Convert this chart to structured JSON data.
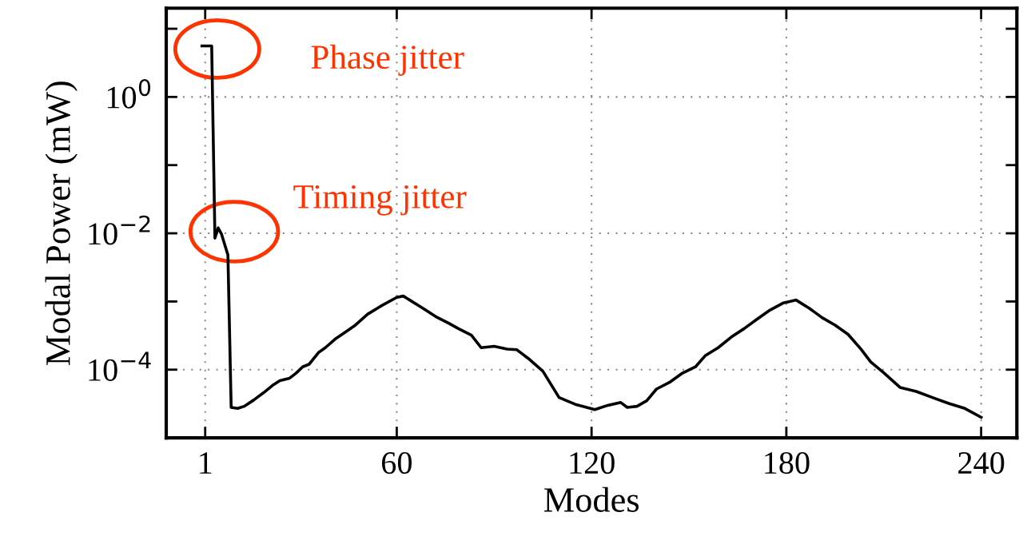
{
  "chart_data": {
    "type": "line",
    "xlabel": "Modes",
    "ylabel": "Modal Power (mW)",
    "log": "y",
    "grid": true,
    "marker": "none",
    "line_style": "solid",
    "xlim": [
      -11,
      251
    ],
    "xticks": [
      1,
      60,
      120,
      180,
      240
    ],
    "ylim": [
      1e-05,
      20
    ],
    "yticks": [
      {
        "value": 10,
        "label": null
      },
      {
        "value": 1,
        "label": "10$^{0}$"
      },
      {
        "value": 0.1,
        "label": null
      },
      {
        "value": 0.01,
        "label": "10$^{−2}$"
      },
      {
        "value": 0.001,
        "label": null
      },
      {
        "value": 0.0001,
        "label": "10$^{−4}$"
      }
    ],
    "series": [
      {
        "color": "#000000",
        "x": [
          0,
          1,
          2,
          3,
          4,
          5,
          6,
          8,
          9,
          11,
          13,
          16,
          19,
          22,
          24,
          27,
          29,
          31,
          33,
          36,
          38,
          41,
          44,
          47,
          51,
          55,
          60,
          62,
          64,
          68,
          72,
          76,
          79,
          83,
          86,
          90,
          94,
          97,
          101,
          105,
          110,
          115,
          121,
          125,
          129,
          131,
          134,
          137,
          140,
          144,
          148,
          152,
          155,
          159,
          163,
          167,
          171,
          175,
          179,
          181,
          183,
          187,
          191,
          195,
          199,
          203,
          206,
          210,
          215,
          220,
          225,
          230,
          235,
          240
        ],
        "values": [
          5.6,
          5.6,
          5.6,
          5.6,
          0.0085,
          0.012,
          0.0098,
          0.0048,
          2.8e-05,
          2.7e-05,
          2.9e-05,
          3.6e-05,
          4.6e-05,
          6e-05,
          6.9e-05,
          7.5e-05,
          8.9e-05,
          0.00011,
          0.00012,
          0.00018,
          0.00021,
          0.00028,
          0.00035,
          0.00044,
          0.00065,
          0.00085,
          0.00115,
          0.0012,
          0.00105,
          0.0008,
          0.0006,
          0.00048,
          0.0004,
          0.00032,
          0.00021,
          0.00022,
          0.0002,
          0.000196,
          0.00014,
          9.5e-05,
          3.9e-05,
          3.1e-05,
          2.6e-05,
          3e-05,
          3.3e-05,
          2.8e-05,
          2.9e-05,
          3.5e-05,
          5.2e-05,
          6.5e-05,
          8.9e-05,
          0.00011,
          0.00016,
          0.00021,
          0.0003,
          0.0004,
          0.00055,
          0.00075,
          0.00095,
          0.001,
          0.00105,
          0.0008,
          0.00058,
          0.00045,
          0.00033,
          0.0002,
          0.00013,
          9e-05,
          5.5e-05,
          4.8e-05,
          3.9e-05,
          3.2e-05,
          2.7e-05,
          2e-05
        ]
      }
    ],
    "annotations": [
      "Phase jitter",
      "Timing jitter"
    ]
  }
}
